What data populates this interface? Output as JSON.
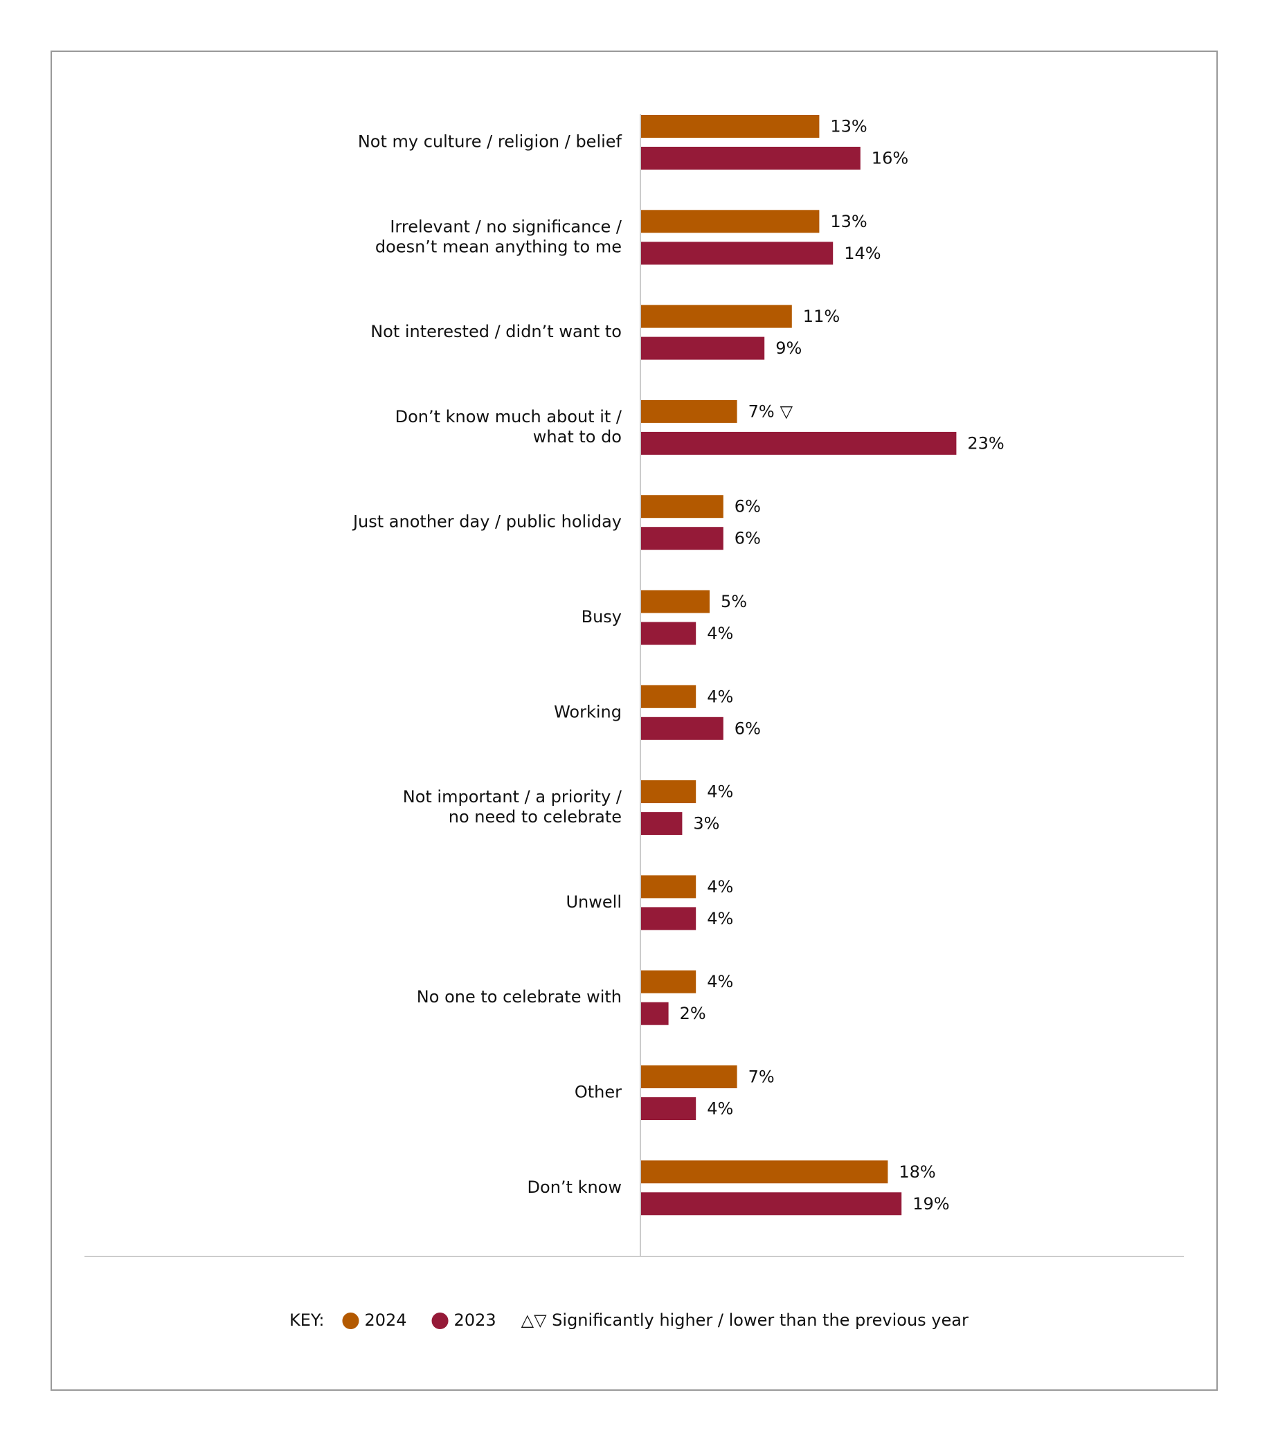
{
  "chart_data": {
    "type": "hbar",
    "categories": [
      [
        "Not my culture / religion / belief"
      ],
      [
        "Irrelevant / no significance /",
        "doesn’t mean anything to me"
      ],
      [
        "Not interested / didn’t want to"
      ],
      [
        "Don’t know much about it /",
        "what to do"
      ],
      [
        "Just another day / public holiday"
      ],
      [
        "Busy"
      ],
      [
        "Working"
      ],
      [
        "Not important / a priority /",
        "no need to celebrate"
      ],
      [
        "Unwell"
      ],
      [
        "No one to celebrate with"
      ],
      [
        "Other"
      ],
      [
        "Don’t know"
      ]
    ],
    "series": [
      {
        "name": "2024",
        "color": "#b35900",
        "values": [
          13,
          13,
          11,
          7,
          6,
          5,
          4,
          4,
          4,
          4,
          7,
          18
        ],
        "value_labels": [
          "13%",
          "13%",
          "11%",
          "7%",
          "6%",
          "5%",
          "4%",
          "4%",
          "4%",
          "4%",
          "7%",
          "18%"
        ],
        "significance": [
          null,
          null,
          null,
          "▽",
          null,
          null,
          null,
          null,
          null,
          null,
          null,
          null
        ]
      },
      {
        "name": "2023",
        "color": "#951a38",
        "values": [
          16,
          14,
          9,
          23,
          6,
          4,
          6,
          3,
          4,
          2,
          4,
          19
        ],
        "value_labels": [
          "16%",
          "14%",
          "9%",
          "23%",
          "6%",
          "4%",
          "6%",
          "3%",
          "4%",
          "2%",
          "4%",
          "19%"
        ]
      }
    ],
    "legend_title": "KEY:",
    "legend_note": "△▽ Significantly higher / lower than the previous year"
  }
}
